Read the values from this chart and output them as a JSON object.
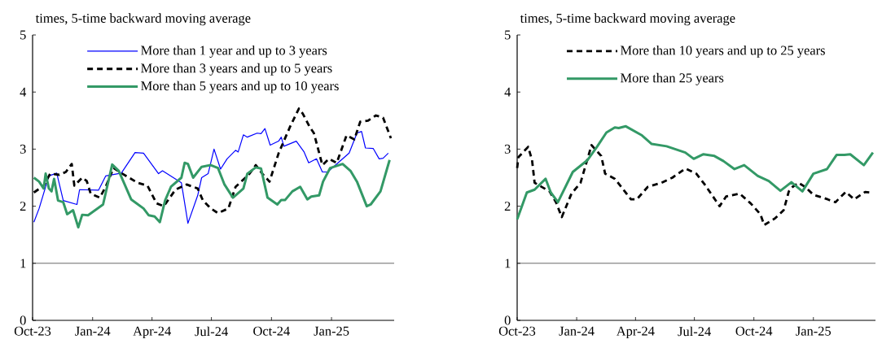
{
  "chart_data": [
    {
      "type": "line",
      "ylabel": "times, 5-time backward moving average",
      "xlim": [
        "2023-10-01",
        "2025-04-07"
      ],
      "ylim": [
        0,
        5
      ],
      "yticks": [
        0,
        1,
        2,
        3,
        4,
        5
      ],
      "xticks": [
        {
          "value": "2023-10-01",
          "label": "Oct-23"
        },
        {
          "value": "2024-01-01",
          "label": "Jan-24"
        },
        {
          "value": "2024-04-01",
          "label": "Apr-24"
        },
        {
          "value": "2024-07-01",
          "label": "Jul-24"
        },
        {
          "value": "2024-10-01",
          "label": "Oct-24"
        },
        {
          "value": "2025-01-01",
          "label": "Jan-25"
        }
      ],
      "legend": "top",
      "ref_lines": [
        {
          "axis": "y",
          "value": 1,
          "color": "#000000"
        }
      ],
      "series": [
        {
          "name": "More than 1 year and up to 3 years",
          "color": "#0000ff",
          "line_style": "solid",
          "x": [
            "2023-10-03",
            "2023-10-11",
            "2023-10-26",
            "2023-11-07",
            "2023-11-17",
            "2023-12-08",
            "2023-12-12",
            "2024-01-10",
            "2024-01-21",
            "2024-02-02",
            "2024-02-14",
            "2024-03-06",
            "2024-03-19",
            "2024-04-11",
            "2024-04-17",
            "2024-05-16",
            "2024-05-26",
            "2024-06-10",
            "2024-06-16",
            "2024-06-26",
            "2024-07-05",
            "2024-07-15",
            "2024-07-25",
            "2024-08-07",
            "2024-08-11",
            "2024-08-19",
            "2024-08-25",
            "2024-09-09",
            "2024-09-15",
            "2024-09-21",
            "2024-09-29",
            "2024-10-12",
            "2024-10-16",
            "2024-10-20",
            "2024-11-08",
            "2024-11-20",
            "2024-11-27",
            "2024-12-09",
            "2024-12-18",
            "2024-12-26",
            "2025-01-11",
            "2025-01-28",
            "2025-02-09",
            "2025-02-16",
            "2025-02-22",
            "2025-03-06",
            "2025-03-15",
            "2025-03-21",
            "2025-03-29"
          ],
          "values": [
            1.72,
            1.96,
            2.53,
            2.58,
            2.1,
            2.03,
            2.29,
            2.28,
            2.53,
            null,
            2.58,
            2.94,
            2.93,
            2.57,
            2.62,
            2.41,
            1.7,
            2.19,
            2.5,
            2.57,
            3.0,
            2.65,
            2.83,
            2.98,
            2.95,
            3.25,
            3.21,
            3.28,
            3.27,
            3.36,
            3.07,
            3.14,
            3.21,
            3.05,
            3.14,
            2.95,
            2.76,
            2.83,
            2.6,
            2.6,
            2.76,
            2.93,
            3.28,
            3.31,
            3.02,
            3.01,
            2.83,
            2.84,
            2.93
          ]
        },
        {
          "name": "More than 3 years and up to 5 years",
          "color": "#000000",
          "line_style": "dashed",
          "x": [
            "2023-10-03",
            "2023-10-18",
            "2023-10-28",
            "2023-11-11",
            "2023-11-21",
            "2023-11-30",
            "2023-12-04",
            "2023-12-16",
            "2023-12-23",
            "2023-12-29",
            "2024-01-12",
            "2024-01-21",
            "2024-02-02",
            "2024-02-14",
            "2024-03-10",
            "2024-03-25",
            "2024-04-08",
            "2024-04-19",
            "2024-05-07",
            "2024-05-24",
            "2024-06-10",
            "2024-06-18",
            "2024-06-30",
            "2024-07-11",
            "2024-07-27",
            "2024-08-07",
            "2024-08-27",
            "2024-09-07",
            "2024-09-17",
            "2024-09-28",
            "2024-10-12",
            "2024-10-29",
            "2024-11-12",
            "2024-11-18",
            "2024-11-29",
            "2024-12-05",
            "2024-12-18",
            "2024-12-28",
            "2025-01-09",
            "2025-01-24",
            "2025-02-05",
            "2025-02-14",
            "2025-02-26",
            "2025-03-10",
            "2025-03-21",
            "2025-04-02"
          ],
          "values": [
            2.24,
            2.36,
            2.57,
            2.55,
            2.6,
            2.74,
            2.36,
            2.5,
            2.44,
            2.22,
            2.15,
            2.34,
            2.67,
            2.58,
            2.41,
            2.36,
            2.05,
            2.0,
            2.29,
            2.38,
            2.31,
            2.1,
            1.96,
            1.88,
            1.96,
            2.34,
            2.55,
            2.72,
            2.57,
            2.43,
            2.93,
            3.38,
            3.71,
            3.62,
            3.38,
            3.28,
            2.72,
            2.83,
            2.76,
            3.24,
            3.17,
            3.48,
            3.5,
            3.59,
            3.55,
            3.19
          ]
        },
        {
          "name": "More than 5 years and up to 10 years",
          "color": "#339966",
          "line_style": "solid",
          "x": [
            "2023-10-03",
            "2023-10-11",
            "2023-10-18",
            "2023-10-21",
            "2023-10-26",
            "2023-10-30",
            "2023-11-03",
            "2023-11-09",
            "2023-11-17",
            "2023-11-23",
            "2023-12-02",
            "2023-12-10",
            "2023-12-16",
            "2023-12-25",
            "2024-01-17",
            "2024-01-31",
            "2024-02-10",
            "2024-02-29",
            "2024-03-19",
            "2024-03-27",
            "2024-04-05",
            "2024-04-13",
            "2024-04-21",
            "2024-04-30",
            "2024-05-16",
            "2024-05-21",
            "2024-05-26",
            "2024-06-03",
            "2024-06-16",
            "2024-06-30",
            "2024-07-11",
            "2024-07-21",
            "2024-08-03",
            "2024-08-19",
            "2024-08-25",
            "2024-09-07",
            "2024-09-15",
            "2024-09-25",
            "2024-10-10",
            "2024-10-16",
            "2024-10-22",
            "2024-11-02",
            "2024-11-14",
            "2024-11-25",
            "2024-12-01",
            "2024-12-13",
            "2024-12-19",
            "2024-12-30",
            "2025-01-18",
            "2025-01-30",
            "2025-02-09",
            "2025-02-24",
            "2025-03-02",
            "2025-03-17",
            "2025-03-31"
          ],
          "values": [
            2.5,
            2.43,
            2.31,
            2.57,
            2.31,
            2.26,
            2.48,
            2.1,
            2.07,
            1.86,
            1.93,
            1.63,
            1.85,
            1.84,
            2.03,
            2.73,
            2.62,
            2.12,
            1.96,
            1.84,
            1.82,
            1.72,
            2.1,
            2.34,
            2.5,
            2.76,
            2.74,
            2.5,
            2.69,
            2.72,
            2.67,
            2.38,
            2.15,
            2.31,
            2.57,
            2.68,
            2.66,
            2.15,
            2.03,
            2.11,
            2.11,
            2.26,
            2.34,
            2.12,
            2.17,
            2.19,
            2.43,
            2.67,
            2.74,
            2.62,
            2.43,
            2.0,
            2.03,
            2.26,
            2.81
          ]
        }
      ]
    },
    {
      "type": "line",
      "ylabel": "times, 5-time backward moving average",
      "xlim": [
        "2023-10-01",
        "2025-04-07"
      ],
      "ylim": [
        0,
        5
      ],
      "yticks": [
        0,
        1,
        2,
        3,
        4,
        5
      ],
      "xticks": [
        {
          "value": "2023-10-01",
          "label": "Oct-23"
        },
        {
          "value": "2024-01-01",
          "label": "Jan-24"
        },
        {
          "value": "2024-04-01",
          "label": "Apr-24"
        },
        {
          "value": "2024-07-01",
          "label": "Jul-24"
        },
        {
          "value": "2024-10-01",
          "label": "Oct-24"
        },
        {
          "value": "2025-01-01",
          "label": "Jan-25"
        }
      ],
      "legend": "top",
      "ref_lines": [
        {
          "axis": "y",
          "value": 1,
          "color": "#000000"
        }
      ],
      "series": [
        {
          "name": "More than 10 years and up to 25 years",
          "color": "#000000",
          "line_style": "dashed",
          "x": [
            "2023-10-01",
            "2023-10-03",
            "2023-10-18",
            "2023-10-24",
            "2023-10-28",
            "2023-11-20",
            "2023-11-30",
            "2023-12-09",
            "2023-12-24",
            "2024-01-07",
            "2024-01-24",
            "2024-02-08",
            "2024-02-14",
            "2024-02-29",
            "2024-03-25",
            "2024-04-03",
            "2024-04-20",
            "2024-05-11",
            "2024-05-28",
            "2024-06-17",
            "2024-07-04",
            "2024-07-17",
            "2024-08-09",
            "2024-08-19",
            "2024-09-09",
            "2024-09-26",
            "2024-10-11",
            "2024-10-17",
            "2024-11-03",
            "2024-11-16",
            "2024-11-24",
            "2024-11-30",
            "2024-12-09",
            "2024-12-19",
            "2025-01-01",
            "2025-01-18",
            "2025-02-04",
            "2025-02-20",
            "2025-03-05",
            "2025-03-22",
            "2025-03-31"
          ],
          "values": [
            2.67,
            2.86,
            3.04,
            2.81,
            2.41,
            2.26,
            2.07,
            1.81,
            2.22,
            2.41,
            3.07,
            2.88,
            2.57,
            2.48,
            2.12,
            2.12,
            2.34,
            2.41,
            2.5,
            2.66,
            2.57,
            2.38,
            2.0,
            2.17,
            2.22,
            2.05,
            1.86,
            1.67,
            1.79,
            1.93,
            2.26,
            2.34,
            2.41,
            2.34,
            2.2,
            2.14,
            2.07,
            2.25,
            2.12,
            2.25,
            2.24
          ]
        },
        {
          "name": "More than 25 years",
          "color": "#339966",
          "line_style": "solid",
          "x": [
            "2023-10-01",
            "2023-10-16",
            "2023-10-28",
            "2023-11-14",
            "2023-11-22",
            "2023-12-03",
            "2023-12-26",
            "2024-01-18",
            "2024-02-02",
            "2024-02-16",
            "2024-02-29",
            "2024-03-06",
            "2024-03-17",
            "2024-04-11",
            "2024-04-26",
            "2024-05-19",
            "2024-06-17",
            "2024-06-30",
            "2024-07-15",
            "2024-08-01",
            "2024-08-15",
            "2024-09-01",
            "2024-09-16",
            "2024-10-07",
            "2024-10-24",
            "2024-11-11",
            "2024-11-28",
            "2024-12-15",
            "2025-01-01",
            "2025-01-22",
            "2025-02-06",
            "2025-02-18",
            "2025-02-27",
            "2025-03-20",
            "2025-04-03"
          ],
          "values": [
            1.77,
            2.24,
            2.29,
            2.48,
            2.24,
            2.07,
            2.6,
            2.81,
            3.05,
            3.29,
            3.38,
            3.37,
            3.4,
            3.24,
            3.09,
            3.05,
            2.94,
            2.83,
            2.91,
            2.88,
            2.79,
            2.65,
            2.72,
            2.53,
            2.44,
            2.27,
            2.42,
            2.26,
            2.57,
            2.65,
            2.9,
            2.9,
            2.91,
            2.72,
            2.94
          ]
        }
      ]
    }
  ]
}
